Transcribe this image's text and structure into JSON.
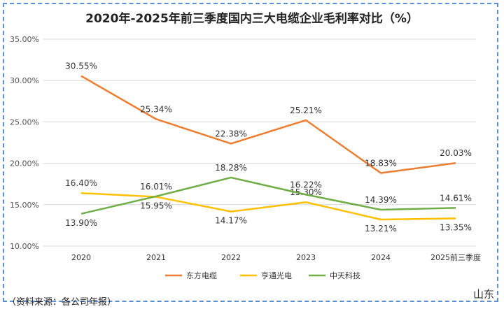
{
  "chart_data": {
    "type": "line",
    "title": "2020年-2025年前三季度国内三大电缆企业毛利率对比（%）",
    "categories": [
      "2020",
      "2021",
      "2022",
      "2023",
      "2024",
      "2025前三季度"
    ],
    "ylim": [
      10,
      35
    ],
    "yticks": [
      "10.00%",
      "15.00%",
      "20.00%",
      "25.00%",
      "30.00%",
      "35.00%"
    ],
    "ytick_values": [
      10,
      15,
      20,
      25,
      30,
      35
    ],
    "grid": true,
    "legend_position": "bottom",
    "series": [
      {
        "name": "东方电缆",
        "color": "#ed7d31",
        "values": [
          30.55,
          25.34,
          22.38,
          25.21,
          18.83,
          20.03
        ],
        "labels": [
          "30.55%",
          "25.34%",
          "22.38%",
          "25.21%",
          "18.83%",
          "20.03%"
        ],
        "label_pos": [
          "above",
          "above",
          "above",
          "above",
          "above",
          "above"
        ]
      },
      {
        "name": "亨通光电",
        "color": "#ffc000",
        "values": [
          16.4,
          15.95,
          14.17,
          15.3,
          13.21,
          13.35
        ],
        "labels": [
          "16.40%",
          "15.95%",
          "14.17%",
          "15.30%",
          "13.21%",
          "13.35%"
        ],
        "label_pos": [
          "above",
          "below",
          "below",
          "above",
          "below",
          "below"
        ]
      },
      {
        "name": "中天科技",
        "color": "#70ad47",
        "values": [
          13.9,
          16.01,
          18.28,
          16.22,
          14.39,
          14.61
        ],
        "labels": [
          "13.90%",
          "16.01%",
          "18.28%",
          "16.22%",
          "14.39%",
          "14.61%"
        ],
        "label_pos": [
          "below",
          "above",
          "above",
          "above",
          "above",
          "above"
        ]
      }
    ]
  },
  "footer": {
    "source": "（资料来源：各公司年报）",
    "watermark": "山东"
  }
}
